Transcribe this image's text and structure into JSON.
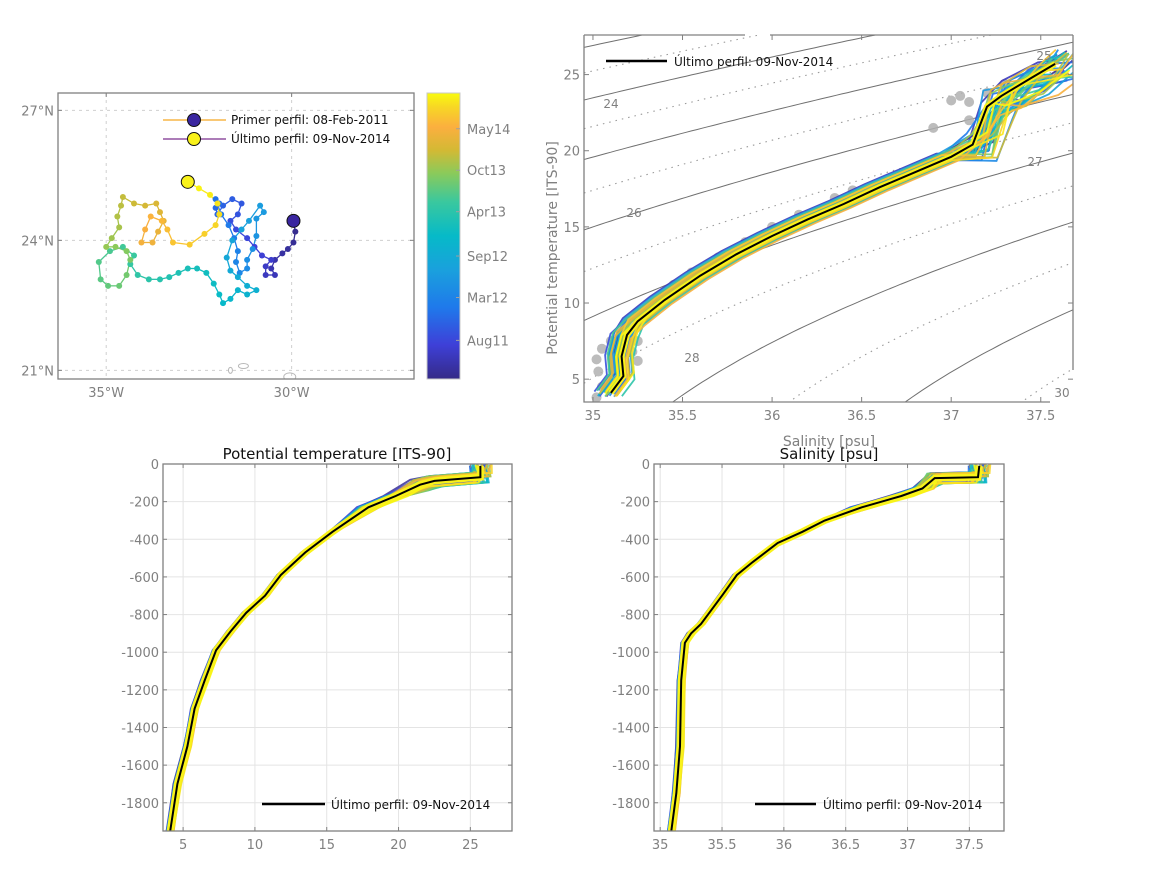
{
  "chart_data": [
    {
      "id": "map",
      "type": "scatter",
      "title": "",
      "xlabel": "",
      "ylabel": "",
      "xlim": [
        -36.3,
        -26.7
      ],
      "ylim": [
        20.8,
        27.4
      ],
      "xticks": [
        {
          "v": -35,
          "label": "35°W"
        },
        {
          "v": -30,
          "label": "30°W"
        }
      ],
      "yticks": [
        {
          "v": 27,
          "label": "27°N"
        },
        {
          "v": 24,
          "label": "24°N"
        },
        {
          "v": 21,
          "label": "21°N"
        }
      ],
      "grid": "dashed",
      "legend": {
        "placement": "top-right",
        "entries": [
          {
            "label": "Primer perfil: 08-Feb-2011",
            "marker_color": "#3a26a0",
            "line_color": "#f5a623"
          },
          {
            "label": "Último perfil: 09-Nov-2014",
            "marker_color": "#f9f21a",
            "line_color": "#7b2d8e"
          }
        ]
      },
      "first_profile": {
        "lon": -29.95,
        "lat": 24.45,
        "date": "08-Feb-2011"
      },
      "last_profile": {
        "lon": -32.8,
        "lat": 25.35,
        "date": "09-Nov-2014"
      },
      "trajectory": [
        [
          -29.95,
          24.45
        ],
        [
          -29.9,
          24.2
        ],
        [
          -29.95,
          23.95
        ],
        [
          -30.1,
          23.8
        ],
        [
          -30.25,
          23.7
        ],
        [
          -30.45,
          23.55
        ],
        [
          -30.55,
          23.35
        ],
        [
          -30.45,
          23.2
        ],
        [
          -30.7,
          23.2
        ],
        [
          -30.7,
          23.4
        ],
        [
          -30.55,
          23.55
        ],
        [
          -30.8,
          23.65
        ],
        [
          -31.0,
          23.85
        ],
        [
          -31.2,
          24.05
        ],
        [
          -31.5,
          24.25
        ],
        [
          -31.65,
          24.45
        ],
        [
          -31.45,
          24.6
        ],
        [
          -31.35,
          24.85
        ],
        [
          -31.6,
          24.95
        ],
        [
          -31.85,
          24.8
        ],
        [
          -32.0,
          24.6
        ],
        [
          -32.05,
          24.75
        ],
        [
          -31.95,
          24.85
        ],
        [
          -32.05,
          24.95
        ],
        [
          -31.9,
          24.6
        ],
        [
          -31.7,
          24.35
        ],
        [
          -31.55,
          24.05
        ],
        [
          -31.45,
          23.75
        ],
        [
          -31.5,
          23.5
        ],
        [
          -31.4,
          23.25
        ],
        [
          -31.2,
          23.35
        ],
        [
          -31.2,
          23.55
        ],
        [
          -31.05,
          23.8
        ],
        [
          -30.95,
          24.1
        ],
        [
          -30.95,
          24.5
        ],
        [
          -30.75,
          24.65
        ],
        [
          -30.85,
          24.8
        ],
        [
          -31.15,
          24.45
        ],
        [
          -31.35,
          24.25
        ],
        [
          -31.6,
          24.0
        ],
        [
          -31.75,
          23.6
        ],
        [
          -31.65,
          23.3
        ],
        [
          -31.45,
          23.15
        ],
        [
          -31.2,
          22.95
        ],
        [
          -30.95,
          22.85
        ],
        [
          -31.2,
          22.75
        ],
        [
          -31.45,
          22.85
        ],
        [
          -31.65,
          22.65
        ],
        [
          -31.85,
          22.55
        ],
        [
          -31.95,
          22.75
        ],
        [
          -32.1,
          23.0
        ],
        [
          -32.3,
          23.25
        ],
        [
          -32.55,
          23.35
        ],
        [
          -32.8,
          23.35
        ],
        [
          -33.05,
          23.25
        ],
        [
          -33.3,
          23.15
        ],
        [
          -33.55,
          23.1
        ],
        [
          -33.85,
          23.1
        ],
        [
          -34.15,
          23.2
        ],
        [
          -34.35,
          23.45
        ],
        [
          -34.25,
          23.65
        ],
        [
          -34.55,
          23.85
        ],
        [
          -34.9,
          23.75
        ],
        [
          -35.2,
          23.5
        ],
        [
          -35.15,
          23.1
        ],
        [
          -34.95,
          22.95
        ],
        [
          -34.65,
          22.95
        ],
        [
          -34.45,
          23.2
        ],
        [
          -34.35,
          23.55
        ],
        [
          -34.45,
          23.75
        ],
        [
          -34.75,
          23.85
        ],
        [
          -35.0,
          23.85
        ],
        [
          -34.85,
          24.05
        ],
        [
          -34.65,
          24.3
        ],
        [
          -34.7,
          24.55
        ],
        [
          -34.6,
          24.8
        ],
        [
          -34.55,
          25.0
        ],
        [
          -34.25,
          24.85
        ],
        [
          -33.95,
          24.8
        ],
        [
          -33.65,
          24.85
        ],
        [
          -33.55,
          24.65
        ],
        [
          -33.45,
          24.45
        ],
        [
          -33.6,
          24.2
        ],
        [
          -33.75,
          23.95
        ],
        [
          -34.05,
          23.95
        ],
        [
          -33.95,
          24.25
        ],
        [
          -33.8,
          24.55
        ],
        [
          -33.5,
          24.45
        ],
        [
          -33.35,
          24.25
        ],
        [
          -33.2,
          23.95
        ],
        [
          -32.75,
          23.9
        ],
        [
          -32.35,
          24.15
        ],
        [
          -32.05,
          24.35
        ],
        [
          -31.95,
          24.6
        ],
        [
          -32.0,
          24.85
        ],
        [
          -32.2,
          25.05
        ],
        [
          -32.5,
          25.2
        ],
        [
          -32.8,
          25.35
        ]
      ],
      "coast_islands": [
        [
          -31.3,
          21.1
        ],
        [
          -31.65,
          21.0
        ],
        [
          -30.05,
          20.85
        ]
      ]
    },
    {
      "id": "colorbar",
      "type": "colorbar",
      "colormap": "parula",
      "tick_labels": [
        "Aug11",
        "Mar12",
        "Sep12",
        "Apr13",
        "Oct13",
        "May14"
      ],
      "range": [
        "08-Feb-2011",
        "09-Nov-2014"
      ]
    },
    {
      "id": "ts",
      "type": "line",
      "title": "",
      "xlabel": "Salinity [psu]",
      "ylabel": "Potential temperature [ITS-90]",
      "xlim": [
        34.95,
        37.68
      ],
      "ylim": [
        3.5,
        27.6
      ],
      "xticks": [
        35,
        35.5,
        36,
        36.5,
        37,
        37.5
      ],
      "yticks": [
        5,
        10,
        15,
        20,
        25
      ],
      "density_contours": [
        {
          "sigma": 24,
          "labeled": true
        },
        {
          "sigma": 25,
          "labeled": true
        },
        {
          "sigma": 26,
          "labeled": true
        },
        {
          "sigma": 27,
          "labeled": true
        },
        {
          "sigma": 28,
          "labeled": true
        },
        {
          "sigma": 29,
          "labeled": false
        },
        {
          "sigma": 30,
          "labeled": true
        }
      ],
      "legend": {
        "placement": "top-left",
        "entries": [
          {
            "label": "Último perfil: 09-Nov-2014",
            "color": "#000000"
          }
        ]
      },
      "climatology_color": "#b0b0b0",
      "last_profile": {
        "S": [
          35.1,
          35.17,
          35.16,
          35.19,
          35.25,
          35.4,
          35.6,
          35.8,
          36.0,
          36.2,
          36.4,
          36.6,
          36.8,
          37.0,
          37.12,
          37.2,
          37.28,
          37.45,
          37.58
        ],
        "T": [
          4.1,
          5.2,
          6.5,
          7.9,
          8.8,
          10.2,
          11.8,
          13.2,
          14.4,
          15.5,
          16.5,
          17.6,
          18.6,
          19.6,
          20.4,
          22.9,
          23.6,
          24.8,
          25.7
        ]
      }
    },
    {
      "id": "temp_profile",
      "type": "line",
      "title": "Potential temperature [ITS-90]",
      "xlabel": "",
      "ylabel": "",
      "xlim": [
        3.6,
        27.9
      ],
      "ylim": [
        -1950,
        0
      ],
      "xticks": [
        5,
        10,
        15,
        20,
        25
      ],
      "yticks": [
        0,
        -200,
        -400,
        -600,
        -800,
        -1000,
        -1200,
        -1400,
        -1600,
        -1800
      ],
      "grid": true,
      "legend": {
        "placement": "bottom-right",
        "entries": [
          {
            "label": "Último perfil: 09-Nov-2014",
            "color": "#000000"
          }
        ]
      },
      "last_profile": {
        "T": [
          25.7,
          25.7,
          22.5,
          21.5,
          19.8,
          17.9,
          15.4,
          13.5,
          11.8,
          10.7,
          9.4,
          8.3,
          7.3,
          6.5,
          5.8,
          5.3,
          4.6,
          4.1
        ],
        "z": [
          -10,
          -70,
          -90,
          -110,
          -170,
          -230,
          -360,
          -470,
          -590,
          -700,
          -790,
          -890,
          -990,
          -1150,
          -1300,
          -1500,
          -1700,
          -1950
        ]
      }
    },
    {
      "id": "sal_profile",
      "type": "line",
      "title": "Salinity [psu]",
      "xlabel": "",
      "ylabel": "",
      "xlim": [
        34.95,
        37.78
      ],
      "ylim": [
        -1950,
        0
      ],
      "xticks": [
        35,
        35.5,
        36,
        36.5,
        37,
        37.5
      ],
      "yticks": [
        0,
        -200,
        -400,
        -600,
        -800,
        -1000,
        -1200,
        -1400,
        -1600,
        -1800
      ],
      "grid": true,
      "legend": {
        "placement": "bottom-right",
        "entries": [
          {
            "label": "Último perfil: 09-Nov-2014",
            "color": "#000000"
          }
        ]
      },
      "last_profile": {
        "S": [
          37.58,
          37.57,
          37.22,
          37.12,
          36.95,
          36.63,
          36.33,
          36.15,
          35.95,
          35.75,
          35.62,
          35.5,
          35.33,
          35.25,
          35.2,
          35.17,
          35.16,
          35.13,
          35.09
        ],
        "z": [
          -10,
          -70,
          -75,
          -130,
          -170,
          -230,
          -300,
          -360,
          -420,
          -520,
          -590,
          -700,
          -850,
          -900,
          -950,
          -1150,
          -1500,
          -1750,
          -1950
        ]
      }
    }
  ],
  "texts": {
    "map_legend_1": "Primer perfil: 08-Feb-2011",
    "map_legend_2": "Último perfil: 09-Nov-2014",
    "ts_legend": "Último perfil: 09-Nov-2014",
    "ts_xlabel": "Salinity [psu]",
    "ts_ylabel": "Potential temperature [ITS-90]",
    "temp_title": "Potential temperature [ITS-90]",
    "temp_legend": "Último perfil: 09-Nov-2014",
    "sal_title": "Salinity [psu]",
    "sal_legend": "Último perfil: 09-Nov-2014"
  }
}
